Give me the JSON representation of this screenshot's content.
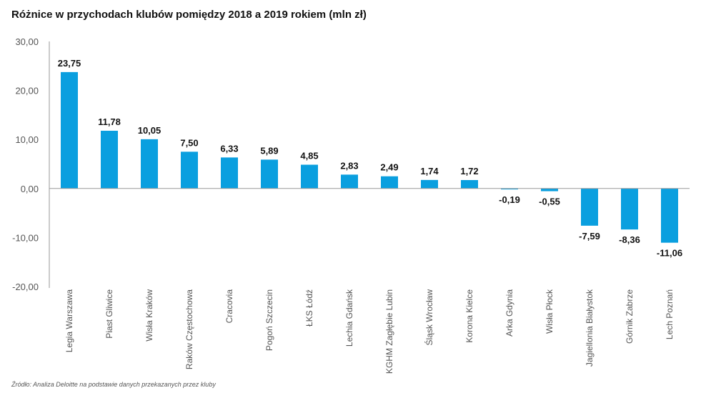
{
  "chart_data": {
    "type": "bar",
    "title": "Różnice w przychodach klubów pomiędzy 2018 a 2019 rokiem (mln zł)",
    "xlabel": "",
    "ylabel": "",
    "ylim": [
      -20,
      30
    ],
    "yticks": [
      30,
      20,
      10,
      0,
      -10,
      -20
    ],
    "ytick_labels": [
      "30,00",
      "20,00",
      "10,00",
      "0,00",
      "-10,00",
      "-20,00"
    ],
    "grid": false,
    "legend": "none",
    "bar_color": "#0a9fdf",
    "categories": [
      "Legia Warszawa",
      "Piast Gliwice",
      "Wisła Kraków",
      "Raków Częstochowa",
      "Cracovia",
      "Pogoń Szczecin",
      "ŁKS Łódź",
      "Lechia Gdańsk",
      "KGHM Zagłębie Lubin",
      "Śląsk Wrocław",
      "Korona Kielce",
      "Arka Gdynia",
      "Wisła Płock",
      "Jagiellonia Białystok",
      "Górnik Zabrze",
      "Lech Poznań"
    ],
    "values": [
      23.75,
      11.78,
      10.05,
      7.5,
      6.33,
      5.89,
      4.85,
      2.83,
      2.49,
      1.74,
      1.72,
      -0.19,
      -0.55,
      -7.59,
      -8.36,
      -11.06
    ],
    "value_labels": [
      "23,75",
      "11,78",
      "10,05",
      "7,50",
      "6,33",
      "5,89",
      "4,85",
      "2,83",
      "2,49",
      "1,74",
      "1,72",
      "-0,19",
      "-0,55",
      "-7,59",
      "-8,36",
      "-11,06"
    ]
  },
  "source": "Źródło: Analiza Deloitte na podstawie danych przekazanych przez kluby"
}
